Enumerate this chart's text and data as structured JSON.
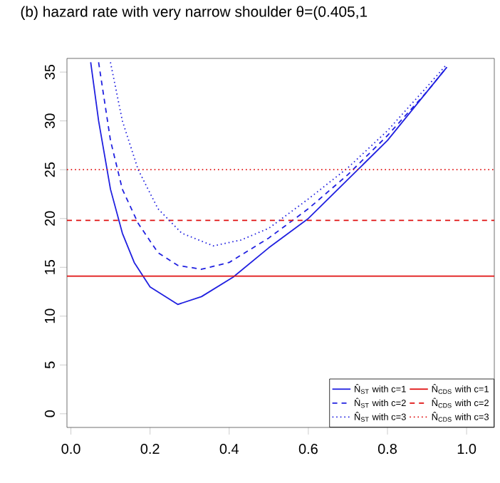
{
  "chart_data": {
    "type": "line",
    "title": "(b) hazard rate with very narrow shoulder θ=(0.405,1",
    "xlim": [
      -0.01,
      1.07
    ],
    "ylim": [
      -1.4,
      36.4
    ],
    "xticks": [
      {
        "value": 0,
        "label": "0.0"
      },
      {
        "value": 0.2,
        "label": "0.2"
      },
      {
        "value": 0.4,
        "label": "0.4"
      },
      {
        "value": 0.6,
        "label": "0.6"
      },
      {
        "value": 0.8,
        "label": "0.8"
      },
      {
        "value": 1,
        "label": "1.0"
      }
    ],
    "yticks": [
      0,
      5,
      10,
      15,
      20,
      25,
      30,
      35
    ],
    "legend": "bottom right",
    "grid": false,
    "marker": "none",
    "series": [
      {
        "name": "N̂$_{ST}$ with c=1",
        "color": "#2020e0",
        "line_style": "solid",
        "x": [
          0.05,
          0.07,
          0.1,
          0.13,
          0.16,
          0.2,
          0.27,
          0.33,
          0.41,
          0.5,
          0.6,
          0.7,
          0.8,
          0.9,
          0.95
        ],
        "values": [
          36,
          30,
          23,
          18.5,
          15.5,
          13,
          11.2,
          12,
          14,
          17,
          20,
          24,
          28,
          33,
          35.5
        ]
      },
      {
        "name": "N̂$_{CDS}$ with c=1",
        "color": "#e01010",
        "line_style": "solid",
        "x": [
          -0.01,
          1.07
        ],
        "values": [
          14.1,
          14.1
        ]
      },
      {
        "name": "N̂$_{ST}$ with c=2",
        "color": "#2020e0",
        "line_style": "dashed",
        "x": [
          0.07,
          0.1,
          0.13,
          0.17,
          0.22,
          0.27,
          0.33,
          0.4,
          0.5,
          0.6,
          0.7,
          0.8,
          0.9,
          0.95
        ],
        "values": [
          36,
          28,
          23,
          19.5,
          16.5,
          15.2,
          14.8,
          15.5,
          18,
          21,
          24.5,
          28.5,
          33,
          35.5
        ]
      },
      {
        "name": "N̂$_{CDS}$ with c=2",
        "color": "#e01010",
        "line_style": "dashed",
        "x": [
          -0.01,
          1.07
        ],
        "values": [
          19.8,
          19.8
        ]
      },
      {
        "name": "N̂$_{ST}$ with c=3",
        "color": "#2020e0",
        "line_style": "dotted",
        "x": [
          0.1,
          0.13,
          0.17,
          0.22,
          0.28,
          0.36,
          0.43,
          0.5,
          0.6,
          0.7,
          0.8,
          0.9,
          0.95
        ],
        "values": [
          36,
          30,
          25,
          21,
          18.5,
          17.2,
          17.8,
          19,
          22,
          25.2,
          29,
          33.5,
          35.8
        ]
      },
      {
        "name": "N̂$_{CDS}$ with c=3",
        "color": "#e01010",
        "line_style": "dotted",
        "x": [
          -0.01,
          1.07
        ],
        "values": [
          25,
          25
        ]
      }
    ]
  }
}
